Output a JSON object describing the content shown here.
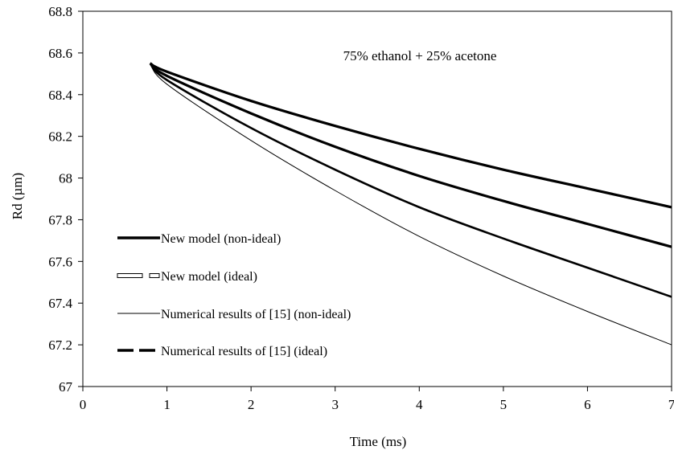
{
  "chart_data": {
    "type": "line",
    "annotation": "75% ethanol + 25% acetone",
    "xlabel": "Time (ms)",
    "ylabel": "Rd (µm)",
    "xlim": [
      0,
      7
    ],
    "ylim": [
      67,
      68.8
    ],
    "x_ticks": [
      0,
      1,
      2,
      3,
      4,
      5,
      6,
      7
    ],
    "x_tick_labels": [
      "0",
      "1",
      "2",
      "3",
      "4",
      "5",
      "6",
      "7"
    ],
    "y_ticks": [
      67,
      67.2,
      67.4,
      67.6,
      67.8,
      68,
      68.2,
      68.4,
      68.6,
      68.8
    ],
    "y_tick_labels": [
      "67",
      "67.2",
      "67.4",
      "67.6",
      "67.8",
      "68",
      "68.2",
      "68.4",
      "68.6",
      "68.8"
    ],
    "grid": false,
    "legend_position": "left",
    "legend": [
      {
        "label": "New model (non-ideal)",
        "style": "thick-solid"
      },
      {
        "label": "New model (ideal)",
        "style": "double-outline"
      },
      {
        "label": "Numerical results of [15] (non-ideal)",
        "style": "thin-solid"
      },
      {
        "label": "Numerical results of [15] (ideal)",
        "style": "thick-dashed"
      }
    ],
    "curves": [
      {
        "stroke": "#000000",
        "width": 3.2,
        "x": [
          0.8,
          1,
          2,
          3,
          4,
          5,
          6,
          7
        ],
        "y": [
          68.55,
          68.51,
          68.37,
          68.25,
          68.14,
          68.04,
          67.95,
          67.86
        ]
      },
      {
        "stroke": "#000000",
        "width": 3.2,
        "x": [
          0.8,
          1,
          2,
          3,
          4,
          5,
          6,
          7
        ],
        "y": [
          68.55,
          68.49,
          68.31,
          68.15,
          68.01,
          67.89,
          67.78,
          67.67
        ]
      },
      {
        "stroke": "#000000",
        "width": 2.6,
        "x": [
          0.8,
          1,
          2,
          3,
          4,
          5,
          6,
          7
        ],
        "y": [
          68.55,
          68.47,
          68.24,
          68.04,
          67.86,
          67.71,
          67.57,
          67.43
        ]
      },
      {
        "stroke": "#000000",
        "width": 1.0,
        "x": [
          0.8,
          1,
          2,
          3,
          4,
          5,
          6,
          7
        ],
        "y": [
          68.55,
          68.45,
          68.18,
          67.94,
          67.72,
          67.53,
          67.36,
          67.2
        ]
      }
    ]
  }
}
